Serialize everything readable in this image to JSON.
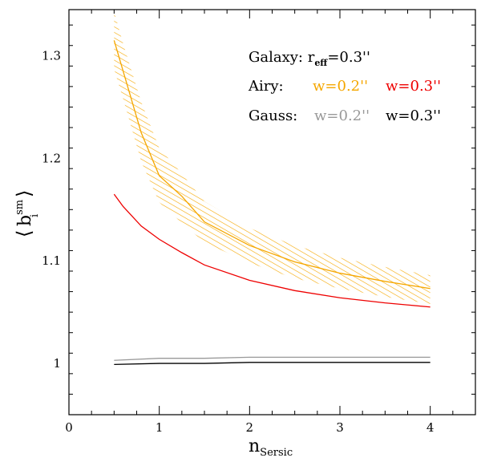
{
  "chart_data": {
    "type": "line",
    "xlabel_main": "n",
    "xlabel_sub": "Sersic",
    "ylabel_main": "b",
    "ylabel_sub": "i",
    "ylabel_sup": "sm",
    "xlim": [
      0,
      4.5
    ],
    "ylim": [
      0.95,
      1.345
    ],
    "x_ticks": [
      0,
      1,
      2,
      3,
      4
    ],
    "x_tick_labels": [
      "0",
      "1",
      "2",
      "3",
      "4"
    ],
    "y_ticks": [
      1.0,
      1.1,
      1.2,
      1.3
    ],
    "y_tick_labels": [
      "1",
      "1.1",
      "1.2",
      "1.3"
    ],
    "grid": false,
    "legend": {
      "line1": {
        "prefix": "Galaxy: r",
        "sub": "eff",
        "suffix": "=0.3''"
      },
      "line2": {
        "label": "Airy:",
        "entry1": "w=0.2''",
        "entry2": "w=0.3''"
      },
      "line3": {
        "label": "Gauss:",
        "entry1": "w=0.2''",
        "entry2": "w=0.3''"
      }
    },
    "series": [
      {
        "key": "airy_w02",
        "style": "Airy",
        "color": "#f5a700",
        "x": [
          0.5,
          0.6,
          0.8,
          1.0,
          1.25,
          1.5,
          2.0,
          2.5,
          3.0,
          3.5,
          4.0
        ],
        "y": [
          1.315,
          1.285,
          1.225,
          1.183,
          1.163,
          1.138,
          1.115,
          1.099,
          1.088,
          1.08,
          1.073
        ],
        "band_upper": [
          1.343,
          1.312,
          1.255,
          1.21,
          1.185,
          1.158,
          1.132,
          1.115,
          1.103,
          1.094,
          1.086
        ],
        "band_lower": [
          1.287,
          1.258,
          1.197,
          1.157,
          1.137,
          1.118,
          1.098,
          1.083,
          1.073,
          1.065,
          1.058
        ]
      },
      {
        "key": "airy_w03",
        "style": "Airy",
        "color": "#ee0000",
        "x": [
          0.5,
          0.6,
          0.8,
          1.0,
          1.25,
          1.5,
          2.0,
          2.5,
          3.0,
          3.5,
          4.0
        ],
        "y": [
          1.165,
          1.153,
          1.134,
          1.121,
          1.108,
          1.096,
          1.081,
          1.071,
          1.064,
          1.059,
          1.055
        ]
      },
      {
        "key": "gauss_w02",
        "style": "Gauss",
        "color": "#999999",
        "x": [
          0.5,
          1.0,
          1.5,
          2.0,
          2.5,
          3.0,
          3.5,
          4.0
        ],
        "y": [
          1.003,
          1.005,
          1.005,
          1.006,
          1.006,
          1.006,
          1.006,
          1.006
        ]
      },
      {
        "key": "gauss_w03",
        "style": "Gauss",
        "color": "#000000",
        "x": [
          0.5,
          1.0,
          1.5,
          2.0,
          2.5,
          3.0,
          3.5,
          4.0
        ],
        "y": [
          0.999,
          1.0,
          1.0,
          1.001,
          1.001,
          1.001,
          1.001,
          1.001
        ]
      }
    ]
  }
}
